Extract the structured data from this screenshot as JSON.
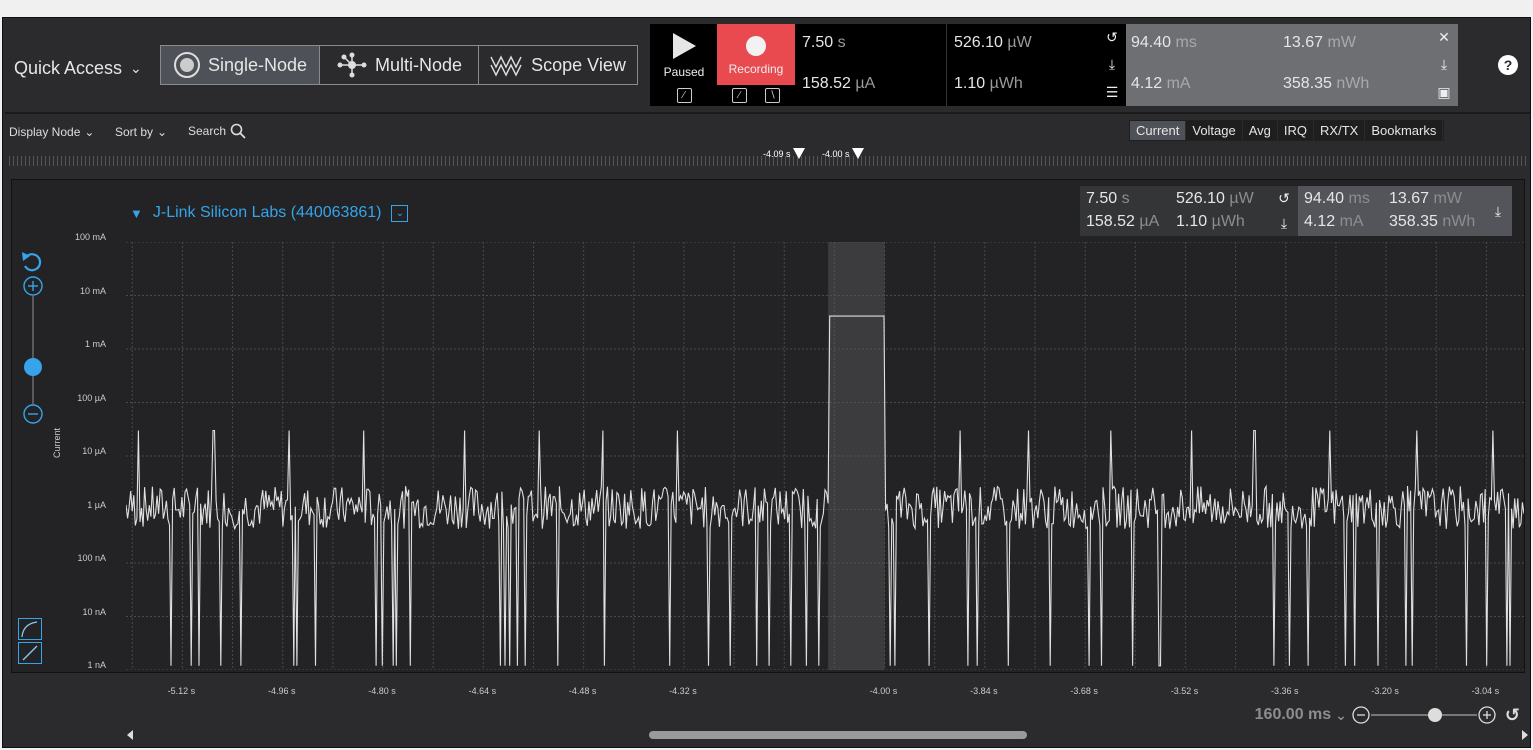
{
  "topbar": {
    "quick_access": "Quick Access",
    "modes": [
      {
        "label": "Single-Node",
        "active": true
      },
      {
        "label": "Multi-Node",
        "active": false
      },
      {
        "label": "Scope View",
        "active": false
      }
    ],
    "paused_label": "Paused",
    "recording_label": "Recording",
    "recording_color": "#e84a4f",
    "measure": {
      "time": {
        "value": "7.50",
        "unit": "s"
      },
      "power": {
        "value": "526.10",
        "unit": "µW"
      },
      "current": {
        "value": "158.52",
        "unit": "µA"
      },
      "energy": {
        "value": "1.10",
        "unit": "µWh"
      }
    },
    "selection": {
      "time": {
        "value": "94.40",
        "unit": "ms"
      },
      "power": {
        "value": "13.67",
        "unit": "mW"
      },
      "current": {
        "value": "4.12",
        "unit": "mA"
      },
      "energy": {
        "value": "358.35",
        "unit": "nWh"
      }
    },
    "help": "?"
  },
  "panel": {
    "display_node": "Display Node",
    "sort_by": "Sort by",
    "search": "Search",
    "tabs": [
      {
        "label": "Current",
        "active": true
      },
      {
        "label": "Voltage",
        "active": false
      },
      {
        "label": "Avg",
        "active": false
      },
      {
        "label": "IRQ",
        "active": false
      },
      {
        "label": "RX/TX",
        "active": false
      },
      {
        "label": "Bookmarks",
        "active": false
      }
    ],
    "markers": [
      "-4.09 s",
      "-4.00 s"
    ]
  },
  "node": {
    "title": "J-Link Silicon Labs (440063861)",
    "accent": "#35a4ea",
    "stats": {
      "time": {
        "value": "7.50",
        "unit": "s"
      },
      "power": {
        "value": "526.10",
        "unit": "µW"
      },
      "current": {
        "value": "158.52",
        "unit": "µA"
      },
      "energy": {
        "value": "1.10",
        "unit": "µWh"
      }
    },
    "sel_stats": {
      "time": {
        "value": "94.40",
        "unit": "ms"
      },
      "power": {
        "value": "13.67",
        "unit": "mW"
      },
      "current": {
        "value": "4.12",
        "unit": "mA"
      },
      "energy": {
        "value": "358.35",
        "unit": "nWh"
      }
    }
  },
  "chart_data": {
    "type": "line",
    "ylabel": "Current",
    "scale": "log",
    "yticks": [
      "100 mA",
      "10 mA",
      "1 mA",
      "100 µA",
      "10 µA",
      "1 µA",
      "100 nA",
      "10 nA",
      "1 nA"
    ],
    "xticks": [
      "-5.12 s",
      "-4.96 s",
      "-4.80 s",
      "-4.64 s",
      "-4.48 s",
      "-4.32 s",
      "-4.00 s",
      "-3.84 s",
      "-3.68 s",
      "-3.52 s",
      "-3.36 s",
      "-3.20 s",
      "-3.04 s"
    ],
    "xlim": [
      -5.21,
      -2.98
    ],
    "series": [
      {
        "color": "#e0e0e0"
      }
    ],
    "baseline_current": "1 µA",
    "spike_times": [
      -5.19,
      -5.07,
      -4.95,
      -4.83,
      -4.67,
      -4.55,
      -4.45,
      -4.33,
      -3.88,
      -3.77,
      -3.64,
      -3.51,
      -3.41,
      -3.29,
      -3.15,
      -3.03
    ],
    "spike_current": "30 µA",
    "selection": {
      "start": -4.09,
      "end": -4.0,
      "level": "4.12 mA"
    },
    "grid": true
  },
  "zoom": {
    "level": "160.00 ms"
  }
}
